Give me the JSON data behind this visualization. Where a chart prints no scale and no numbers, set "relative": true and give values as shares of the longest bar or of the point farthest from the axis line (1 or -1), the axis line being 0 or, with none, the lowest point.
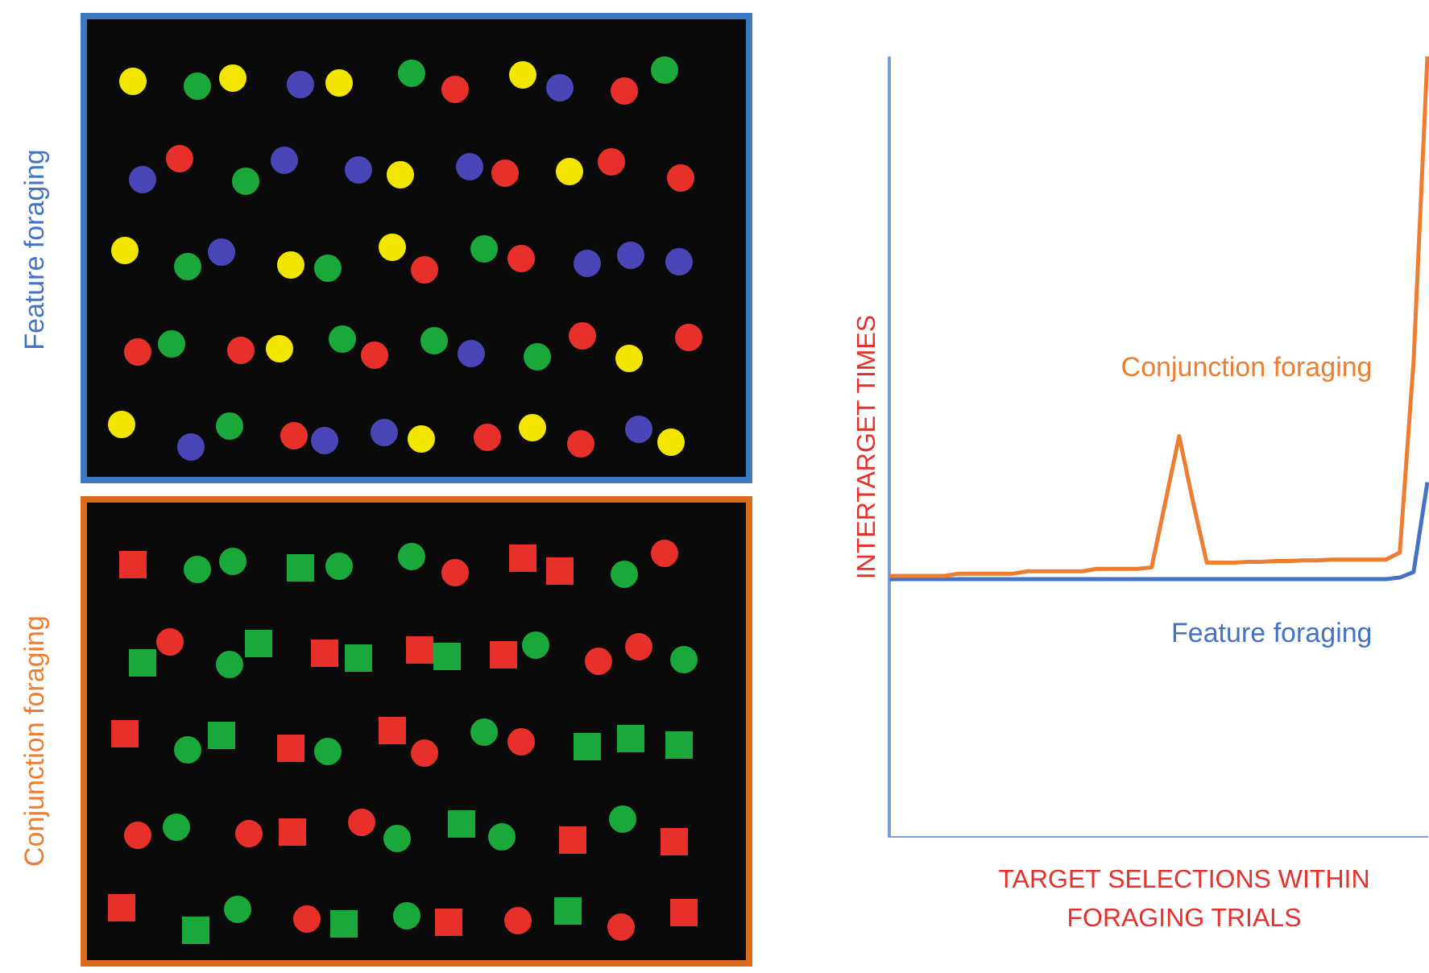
{
  "chart_data": {
    "type": "line",
    "relative": true,
    "xlabel": "TARGET SELECTIONS WITHIN FORAGING TRIALS",
    "ylabel": "INTERTARGET TIMES",
    "annotations": [
      "Feature foraging",
      "Conjunction foraging"
    ],
    "categories": [
      null,
      null,
      null,
      null,
      null,
      null,
      null,
      null,
      null,
      null,
      null,
      null,
      null,
      null,
      null,
      null,
      null,
      null,
      null,
      null,
      null,
      null,
      null,
      null,
      null,
      null,
      null,
      null,
      null,
      null,
      null,
      null,
      null,
      null,
      null,
      null,
      null,
      null,
      null,
      null
    ],
    "series": [
      {
        "name": "Conjunction foraging",
        "color": "#ed7d31",
        "values": [
          0.335,
          0.335,
          0.335,
          0.335,
          0.335,
          0.338,
          0.338,
          0.338,
          0.338,
          0.338,
          0.341,
          0.341,
          0.341,
          0.341,
          0.341,
          0.344,
          0.344,
          0.344,
          0.344,
          0.346,
          0.43,
          0.514,
          0.43,
          0.352,
          0.352,
          0.352,
          0.353,
          0.353,
          0.354,
          0.354,
          0.355,
          0.355,
          0.356,
          0.356,
          0.356,
          0.356,
          0.356,
          0.365,
          0.61,
          1
        ]
      },
      {
        "name": "Feature foraging",
        "color": "#4472c4",
        "values": [
          0.331,
          0.331,
          0.331,
          0.331,
          0.331,
          0.331,
          0.331,
          0.331,
          0.331,
          0.331,
          0.331,
          0.331,
          0.331,
          0.331,
          0.331,
          0.331,
          0.331,
          0.331,
          0.331,
          0.331,
          0.331,
          0.331,
          0.331,
          0.331,
          0.331,
          0.331,
          0.331,
          0.331,
          0.331,
          0.331,
          0.331,
          0.331,
          0.331,
          0.331,
          0.331,
          0.331,
          0.331,
          0.333,
          0.34,
          0.455
        ]
      }
    ]
  }
}
